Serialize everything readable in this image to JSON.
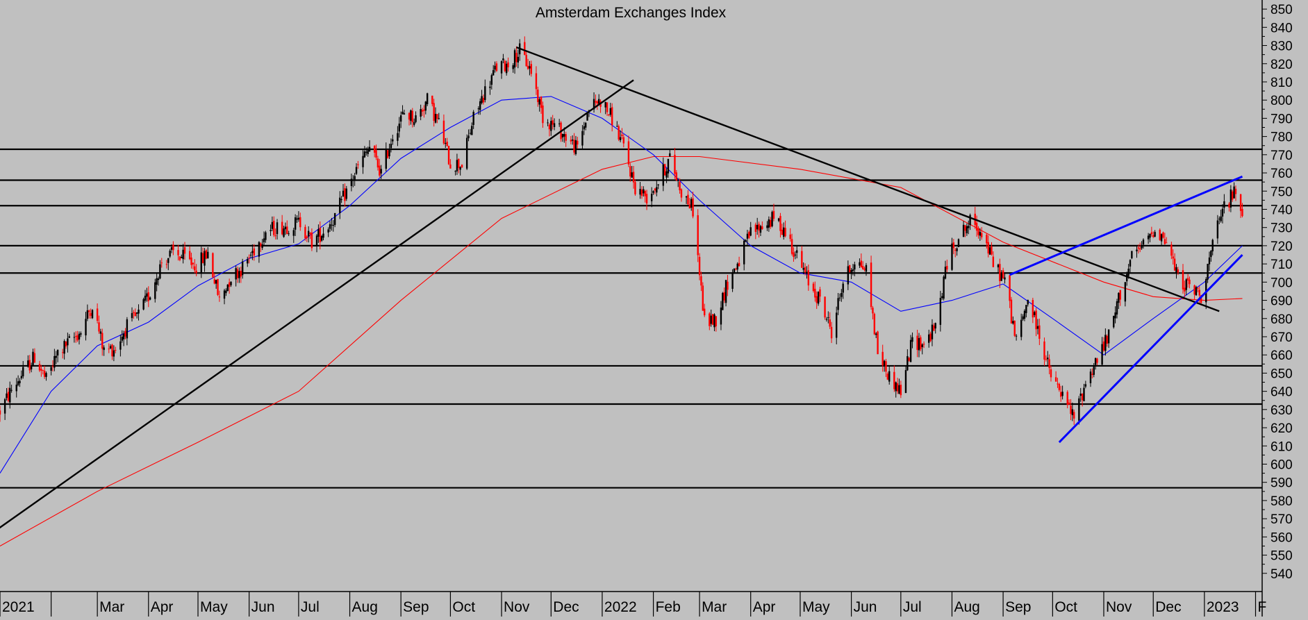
{
  "chart_data": {
    "type": "candlestick",
    "title": "Amsterdam Exchanges Index",
    "xlabel": "",
    "ylabel": "",
    "ylim": [
      530,
      855
    ],
    "y_ticks": [
      540,
      550,
      560,
      570,
      580,
      590,
      600,
      610,
      620,
      630,
      640,
      650,
      660,
      670,
      680,
      690,
      700,
      710,
      720,
      730,
      740,
      750,
      760,
      770,
      780,
      790,
      800,
      810,
      820,
      830,
      840,
      850
    ],
    "x_range": [
      "2021-01-01",
      "2023-02-05"
    ],
    "x_ticks": [
      {
        "label": "2021",
        "date": "2021-01-01"
      },
      {
        "label": "",
        "date": "2021-02-01"
      },
      {
        "label": "Mar",
        "date": "2021-03-01"
      },
      {
        "label": "Apr",
        "date": "2021-04-01"
      },
      {
        "label": "May",
        "date": "2021-05-01"
      },
      {
        "label": "Jun",
        "date": "2021-06-01"
      },
      {
        "label": "Jul",
        "date": "2021-07-01"
      },
      {
        "label": "Aug",
        "date": "2021-08-01"
      },
      {
        "label": "Sep",
        "date": "2021-09-01"
      },
      {
        "label": "Oct",
        "date": "2021-10-01"
      },
      {
        "label": "Nov",
        "date": "2021-11-01"
      },
      {
        "label": "Dec",
        "date": "2021-12-01"
      },
      {
        "label": "2022",
        "date": "2022-01-01"
      },
      {
        "label": "Feb",
        "date": "2022-02-01"
      },
      {
        "label": "Mar",
        "date": "2022-03-01"
      },
      {
        "label": "Apr",
        "date": "2022-04-01"
      },
      {
        "label": "May",
        "date": "2022-05-01"
      },
      {
        "label": "Jun",
        "date": "2022-06-01"
      },
      {
        "label": "Jul",
        "date": "2022-07-01"
      },
      {
        "label": "Aug",
        "date": "2022-08-01"
      },
      {
        "label": "Sep",
        "date": "2022-09-01"
      },
      {
        "label": "Oct",
        "date": "2022-10-01"
      },
      {
        "label": "Nov",
        "date": "2022-11-01"
      },
      {
        "label": "Dec",
        "date": "2022-12-01"
      },
      {
        "label": "2023",
        "date": "2023-01-01"
      },
      {
        "label": "F",
        "date": "2023-02-01"
      }
    ],
    "grid": false,
    "colors": {
      "background": "#c0c0c0",
      "up_candle": "#000000",
      "down_candle": "#ff0000",
      "ma_short": "#0000ff",
      "ma_long": "#ff0000",
      "support_resistance": "#000000",
      "trend_black": "#000000",
      "trend_blue": "#0000ff"
    },
    "price_path": [
      [
        "2021-01-01",
        629
      ],
      [
        "2021-01-08",
        641
      ],
      [
        "2021-01-15",
        650
      ],
      [
        "2021-01-22",
        659
      ],
      [
        "2021-01-29",
        646
      ],
      [
        "2021-02-05",
        661
      ],
      [
        "2021-02-12",
        667
      ],
      [
        "2021-02-19",
        673
      ],
      [
        "2021-02-26",
        688
      ],
      [
        "2021-03-05",
        662
      ],
      [
        "2021-03-12",
        664
      ],
      [
        "2021-03-19",
        676
      ],
      [
        "2021-03-26",
        682
      ],
      [
        "2021-04-02",
        694
      ],
      [
        "2021-04-09",
        711
      ],
      [
        "2021-04-16",
        716
      ],
      [
        "2021-04-23",
        713
      ],
      [
        "2021-04-30",
        709
      ],
      [
        "2021-05-07",
        716
      ],
      [
        "2021-05-14",
        690
      ],
      [
        "2021-05-21",
        703
      ],
      [
        "2021-05-28",
        708
      ],
      [
        "2021-06-04",
        718
      ],
      [
        "2021-06-11",
        728
      ],
      [
        "2021-06-18",
        730
      ],
      [
        "2021-06-25",
        731
      ],
      [
        "2021-07-02",
        733
      ],
      [
        "2021-07-09",
        722
      ],
      [
        "2021-07-16",
        728
      ],
      [
        "2021-07-23",
        736
      ],
      [
        "2021-07-30",
        750
      ],
      [
        "2021-08-06",
        763
      ],
      [
        "2021-08-13",
        774
      ],
      [
        "2021-08-20",
        760
      ],
      [
        "2021-08-27",
        781
      ],
      [
        "2021-09-03",
        793
      ],
      [
        "2021-09-10",
        790
      ],
      [
        "2021-09-17",
        800
      ],
      [
        "2021-09-24",
        787
      ],
      [
        "2021-10-01",
        765
      ],
      [
        "2021-10-08",
        765
      ],
      [
        "2021-10-15",
        790
      ],
      [
        "2021-10-22",
        805
      ],
      [
        "2021-10-29",
        818
      ],
      [
        "2021-11-05",
        820
      ],
      [
        "2021-11-12",
        827
      ],
      [
        "2021-11-19",
        816
      ],
      [
        "2021-11-26",
        791
      ],
      [
        "2021-12-03",
        786
      ],
      [
        "2021-12-10",
        780
      ],
      [
        "2021-12-17",
        773
      ],
      [
        "2021-12-24",
        796
      ],
      [
        "2021-12-31",
        800
      ],
      [
        "2022-01-07",
        790
      ],
      [
        "2022-01-14",
        774
      ],
      [
        "2022-01-21",
        752
      ],
      [
        "2022-01-28",
        747
      ],
      [
        "2022-02-04",
        755
      ],
      [
        "2022-02-11",
        768
      ],
      [
        "2022-02-18",
        750
      ],
      [
        "2022-02-25",
        740
      ],
      [
        "2022-03-04",
        678
      ],
      [
        "2022-03-11",
        680
      ],
      [
        "2022-03-18",
        700
      ],
      [
        "2022-03-25",
        712
      ],
      [
        "2022-04-01",
        727
      ],
      [
        "2022-04-08",
        731
      ],
      [
        "2022-04-15",
        735
      ],
      [
        "2022-04-22",
        728
      ],
      [
        "2022-04-29",
        714
      ],
      [
        "2022-05-06",
        700
      ],
      [
        "2022-05-13",
        690
      ],
      [
        "2022-05-20",
        673
      ],
      [
        "2022-05-27",
        700
      ],
      [
        "2022-06-03",
        712
      ],
      [
        "2022-06-10",
        707
      ],
      [
        "2022-06-17",
        662
      ],
      [
        "2022-06-24",
        648
      ],
      [
        "2022-07-01",
        640
      ],
      [
        "2022-07-08",
        668
      ],
      [
        "2022-07-15",
        666
      ],
      [
        "2022-07-22",
        675
      ],
      [
        "2022-07-29",
        711
      ],
      [
        "2022-08-05",
        725
      ],
      [
        "2022-08-12",
        733
      ],
      [
        "2022-08-19",
        728
      ],
      [
        "2022-08-26",
        710
      ],
      [
        "2022-09-02",
        701
      ],
      [
        "2022-09-09",
        667
      ],
      [
        "2022-09-16",
        691
      ],
      [
        "2022-09-23",
        671
      ],
      [
        "2022-09-30",
        648
      ],
      [
        "2022-10-07",
        637
      ],
      [
        "2022-10-14",
        625
      ],
      [
        "2022-10-21",
        645
      ],
      [
        "2022-10-28",
        658
      ],
      [
        "2022-11-04",
        670
      ],
      [
        "2022-11-11",
        694
      ],
      [
        "2022-11-18",
        713
      ],
      [
        "2022-11-25",
        720
      ],
      [
        "2022-12-02",
        730
      ],
      [
        "2022-12-09",
        722
      ],
      [
        "2022-12-16",
        702
      ],
      [
        "2022-12-23",
        697
      ],
      [
        "2022-12-30",
        693
      ],
      [
        "2023-01-06",
        720
      ],
      [
        "2023-01-13",
        742
      ],
      [
        "2023-01-20",
        750
      ],
      [
        "2023-01-24",
        737
      ]
    ],
    "ma_short": [
      [
        "2021-01-01",
        595
      ],
      [
        "2021-02-01",
        640
      ],
      [
        "2021-03-01",
        665
      ],
      [
        "2021-04-01",
        678
      ],
      [
        "2021-05-01",
        698
      ],
      [
        "2021-06-01",
        713
      ],
      [
        "2021-07-01",
        721
      ],
      [
        "2021-08-01",
        742
      ],
      [
        "2021-09-01",
        768
      ],
      [
        "2021-10-01",
        785
      ],
      [
        "2021-11-01",
        800
      ],
      [
        "2021-12-01",
        802
      ],
      [
        "2022-01-01",
        790
      ],
      [
        "2022-02-01",
        770
      ],
      [
        "2022-03-01",
        745
      ],
      [
        "2022-04-01",
        720
      ],
      [
        "2022-05-01",
        705
      ],
      [
        "2022-06-01",
        700
      ],
      [
        "2022-07-01",
        684
      ],
      [
        "2022-08-01",
        690
      ],
      [
        "2022-09-01",
        699
      ],
      [
        "2022-10-01",
        680
      ],
      [
        "2022-11-01",
        660
      ],
      [
        "2022-12-01",
        680
      ],
      [
        "2023-01-01",
        700
      ],
      [
        "2023-01-24",
        720
      ]
    ],
    "ma_long": [
      [
        "2021-01-01",
        555
      ],
      [
        "2021-03-01",
        585
      ],
      [
        "2021-05-01",
        612
      ],
      [
        "2021-07-01",
        640
      ],
      [
        "2021-09-01",
        690
      ],
      [
        "2021-11-01",
        735
      ],
      [
        "2022-01-01",
        762
      ],
      [
        "2022-02-01",
        769
      ],
      [
        "2022-03-01",
        769
      ],
      [
        "2022-05-01",
        762
      ],
      [
        "2022-07-01",
        752
      ],
      [
        "2022-09-01",
        722
      ],
      [
        "2022-11-01",
        700
      ],
      [
        "2022-12-01",
        692
      ],
      [
        "2023-01-01",
        690
      ],
      [
        "2023-01-24",
        691
      ]
    ],
    "horizontal_levels": [
      773,
      756,
      742,
      720,
      705,
      654,
      633,
      587
    ],
    "trendlines": [
      {
        "color": "black",
        "from": [
          "2020-12-27",
          562
        ],
        "to": [
          "2022-01-20",
          811
        ]
      },
      {
        "color": "black",
        "from": [
          "2021-11-10",
          829
        ],
        "to": [
          "2023-01-10",
          684
        ]
      },
      {
        "color": "blue",
        "from": [
          "2022-09-05",
          704
        ],
        "to": [
          "2023-01-24",
          758
        ]
      },
      {
        "color": "blue",
        "from": [
          "2022-10-05",
          612
        ],
        "to": [
          "2023-01-24",
          715
        ]
      }
    ]
  }
}
